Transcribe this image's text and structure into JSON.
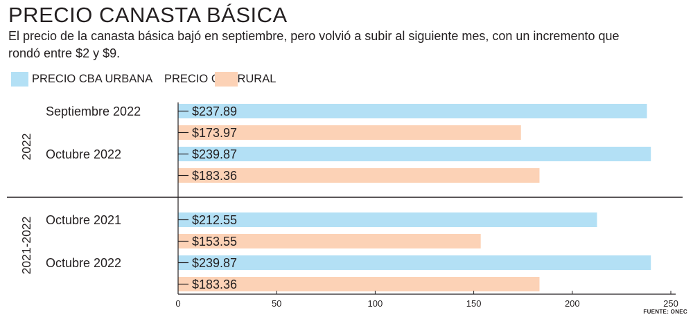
{
  "title": "PRECIO CANASTA BÁSICA",
  "subtitle": "El precio de la canasta básica bajó en septiembre, pero volvió a subir al siguiente mes, con un incremento que rondó entre $2 y $9.",
  "source": "FUENTE: ONEC",
  "colors": {
    "urbana": "#b3e0f5",
    "rural": "#fcd2b6"
  },
  "chart_data": {
    "type": "bar",
    "orientation": "horizontal",
    "xlim": [
      0,
      250
    ],
    "xticks": [
      0,
      50,
      100,
      150,
      200,
      250
    ],
    "legend": [
      "PRECIO CBA URBANA",
      "PRECIO CBA RURAL"
    ],
    "groups": [
      {
        "label": "2022",
        "categories": [
          {
            "label": "Septiembre 2022",
            "urbana": 237.89,
            "urbana_label": "$237.89",
            "rural": 173.97,
            "rural_label": "$173.97"
          },
          {
            "label": "Octubre 2022",
            "urbana": 239.87,
            "urbana_label": "$239.87",
            "rural": 183.36,
            "rural_label": "$183.36"
          }
        ]
      },
      {
        "label": "2021-2022",
        "categories": [
          {
            "label": "Octubre 2021",
            "urbana": 212.55,
            "urbana_label": "$212.55",
            "rural": 153.55,
            "rural_label": "$153.55"
          },
          {
            "label": "Octubre 2022",
            "urbana": 239.87,
            "urbana_label": "$239.87",
            "rural": 183.36,
            "rural_label": "$183.36"
          }
        ]
      }
    ]
  }
}
